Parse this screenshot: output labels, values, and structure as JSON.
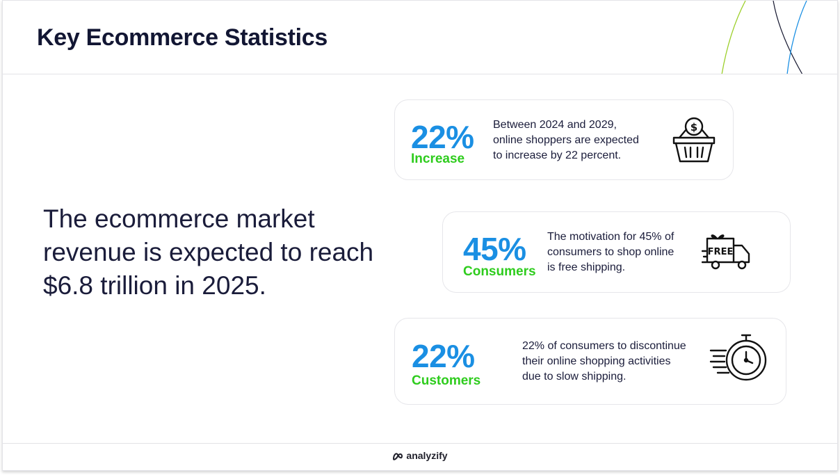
{
  "header": {
    "title": "Key Ecommerce Statistics"
  },
  "main": {
    "headline": "The ecommerce market revenue is expected to reach $6.8 trillion in 2025."
  },
  "stats": [
    {
      "value": "22%",
      "label": "Increase",
      "description_lines": [
        "Between 2024 and 2029,",
        "online shoppers are expected",
        "to increase by 22 percent."
      ],
      "icon": "shopping-basket-dollar-icon"
    },
    {
      "value": "45%",
      "label": "Consumers",
      "description_lines": [
        "The motivation for 45% of",
        "consumers to shop online",
        "is free shipping."
      ],
      "icon": "free-delivery-truck-icon",
      "icon_text": "FREE"
    },
    {
      "value": "22%",
      "label": "Customers",
      "description_lines": [
        "22% of consumers to discontinue",
        "their online shopping activities",
        "due to slow shipping."
      ],
      "icon": "fast-stopwatch-icon"
    }
  ],
  "footer": {
    "brand": "analyzify",
    "logo_icon": "analyzify-logo-icon"
  },
  "colors": {
    "accent_blue": "#1a8fe3",
    "accent_green": "#2ecc1d",
    "text_dark": "#121633",
    "deco_blue": "#1a8fe3",
    "deco_green": "#9ccf2a"
  }
}
